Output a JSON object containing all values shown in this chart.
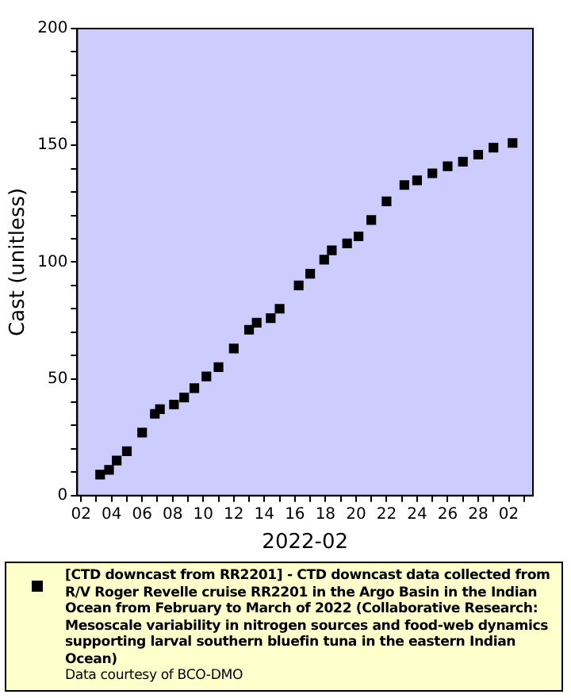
{
  "chart_data": {
    "type": "scatter",
    "xlabel": "2022-02",
    "ylabel": "Cast (unitless)",
    "x": [
      "2022-02-03T06:00",
      "2022-02-03T20:00",
      "2022-02-04T08:00",
      "2022-02-05T00:00",
      "2022-02-06T00:00",
      "2022-02-06T20:00",
      "2022-02-07T04:00",
      "2022-02-08T02:00",
      "2022-02-08T18:00",
      "2022-02-09T10:00",
      "2022-02-10T05:00",
      "2022-02-11T00:00",
      "2022-02-12T00:00",
      "2022-02-13T00:00",
      "2022-02-13T12:00",
      "2022-02-14T10:00",
      "2022-02-15T00:00",
      "2022-02-16T06:00",
      "2022-02-17T00:00",
      "2022-02-17T22:00",
      "2022-02-18T10:00",
      "2022-02-19T10:00",
      "2022-02-20T04:00",
      "2022-02-21T00:00",
      "2022-02-22T00:00",
      "2022-02-23T04:00",
      "2022-02-24T00:00",
      "2022-02-25T00:00",
      "2022-02-26T00:00",
      "2022-02-27T00:00",
      "2022-02-28T00:00",
      "2022-03-01T00:00",
      "2022-03-02T06:00"
    ],
    "series": [
      {
        "name": "[CTD downcast from RR2201] - CTD downcast data collected from R/V Roger Revelle cruise RR2201 in the Argo Basin in the Indian Ocean from February to March of 2022 (Collaborative Research: Mesoscale variability in nitrogen sources and food-web dynamics supporting larval southern bluefin tuna in the eastern Indian Ocean)",
        "color": "#000000",
        "values": [
          9,
          11,
          15,
          19,
          27,
          35,
          37,
          39,
          42,
          46,
          51,
          55,
          63,
          71,
          74,
          76,
          80,
          90,
          95,
          101,
          105,
          108,
          111,
          118,
          126,
          133,
          135,
          138,
          141,
          143,
          146,
          149,
          151
        ]
      }
    ],
    "xlim": [
      "2022-02-01T18:00",
      "2022-03-03T14:00"
    ],
    "xticks": [
      {
        "value": "2022-02-02",
        "label": "02"
      },
      {
        "value": "2022-02-03",
        "label": null
      },
      {
        "value": "2022-02-04",
        "label": "04"
      },
      {
        "value": "2022-02-05",
        "label": null
      },
      {
        "value": "2022-02-06",
        "label": "06"
      },
      {
        "value": "2022-02-07",
        "label": null
      },
      {
        "value": "2022-02-08",
        "label": "08"
      },
      {
        "value": "2022-02-09",
        "label": null
      },
      {
        "value": "2022-02-10",
        "label": "10"
      },
      {
        "value": "2022-02-11",
        "label": null
      },
      {
        "value": "2022-02-12",
        "label": "12"
      },
      {
        "value": "2022-02-13",
        "label": null
      },
      {
        "value": "2022-02-14",
        "label": "14"
      },
      {
        "value": "2022-02-15",
        "label": null
      },
      {
        "value": "2022-02-16",
        "label": "16"
      },
      {
        "value": "2022-02-17",
        "label": null
      },
      {
        "value": "2022-02-18",
        "label": "18"
      },
      {
        "value": "2022-02-19",
        "label": null
      },
      {
        "value": "2022-02-20",
        "label": "20"
      },
      {
        "value": "2022-02-21",
        "label": null
      },
      {
        "value": "2022-02-22",
        "label": "22"
      },
      {
        "value": "2022-02-23",
        "label": null
      },
      {
        "value": "2022-02-24",
        "label": "24"
      },
      {
        "value": "2022-02-25",
        "label": null
      },
      {
        "value": "2022-02-26",
        "label": "26"
      },
      {
        "value": "2022-02-27",
        "label": null
      },
      {
        "value": "2022-02-28",
        "label": "28"
      },
      {
        "value": "2022-03-01",
        "label": null
      },
      {
        "value": "2022-03-02",
        "label": "02"
      },
      {
        "value": "2022-03-03",
        "label": null
      }
    ],
    "ylim": [
      0,
      200
    ],
    "yticks": [
      0,
      {
        "value": 10,
        "label": null
      },
      {
        "value": 20,
        "label": null
      },
      {
        "value": 30,
        "label": null
      },
      {
        "value": 40,
        "label": null
      },
      50,
      {
        "value": 60,
        "label": null
      },
      {
        "value": 70,
        "label": null
      },
      {
        "value": 80,
        "label": null
      },
      {
        "value": 90,
        "label": null
      },
      100,
      {
        "value": 110,
        "label": null
      },
      {
        "value": 120,
        "label": null
      },
      {
        "value": 130,
        "label": null
      },
      {
        "value": 140,
        "label": null
      },
      150,
      {
        "value": 160,
        "label": null
      },
      {
        "value": 170,
        "label": null
      },
      {
        "value": 180,
        "label": null
      },
      {
        "value": 190,
        "label": null
      },
      200
    ],
    "grid": false,
    "legend": "bottom",
    "marker": "square",
    "annotations": [
      "Data courtesy of BCO-DMO"
    ]
  }
}
